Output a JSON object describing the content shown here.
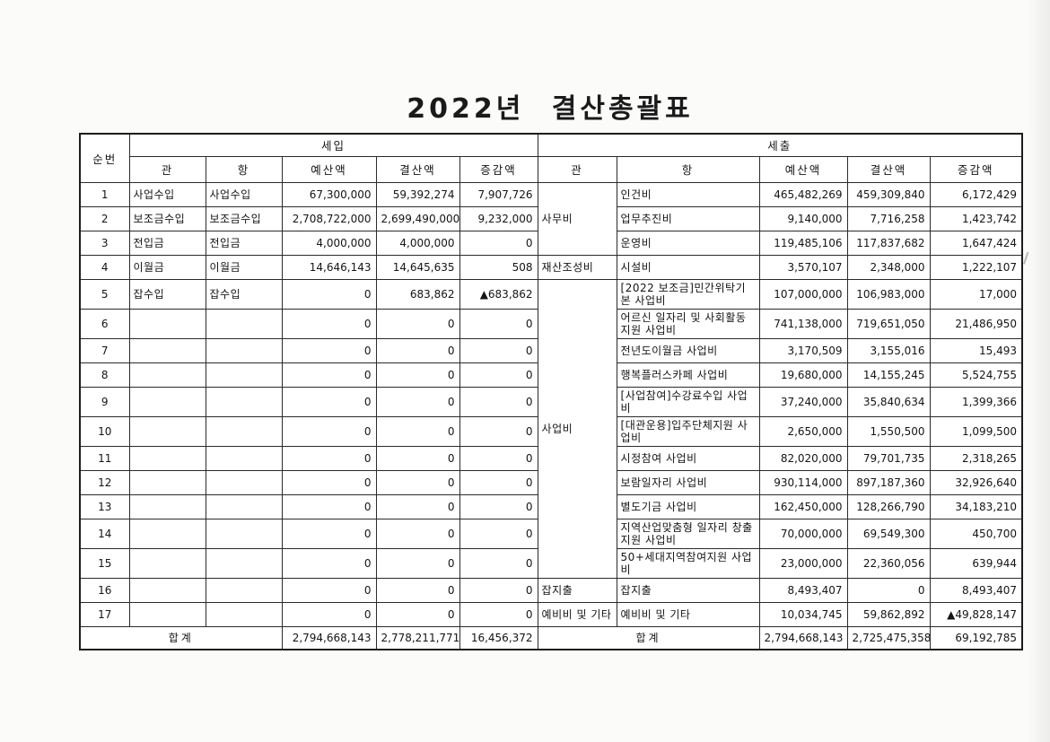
{
  "page": {
    "title": "2022년  결산총괄표"
  },
  "table": {
    "col_seq": "순번",
    "sections": {
      "revenue": "세입",
      "expenditure": "세출"
    },
    "sub_headers": [
      "관",
      "항",
      "예산액",
      "결산액",
      "증감액"
    ],
    "revenue_rows": [
      {
        "seq": "1",
        "gwan": "사업수입",
        "hang": "사업수입",
        "budget": "67,300,000",
        "settlement": "59,392,274",
        "change": "7,907,726"
      },
      {
        "seq": "2",
        "gwan": "보조금수입",
        "hang": "보조금수입",
        "budget": "2,708,722,000",
        "settlement": "2,699,490,000",
        "change": "9,232,000"
      },
      {
        "seq": "3",
        "gwan": "전입금",
        "hang": "전입금",
        "budget": "4,000,000",
        "settlement": "4,000,000",
        "change": "0"
      },
      {
        "seq": "4",
        "gwan": "이월금",
        "hang": "이월금",
        "budget": "14,646,143",
        "settlement": "14,645,635",
        "change": "508"
      },
      {
        "seq": "5",
        "gwan": "잡수입",
        "hang": "잡수입",
        "budget": "0",
        "settlement": "683,862",
        "change": "▲683,862"
      },
      {
        "seq": "6",
        "gwan": "",
        "hang": "",
        "budget": "0",
        "settlement": "0",
        "change": "0"
      },
      {
        "seq": "7",
        "gwan": "",
        "hang": "",
        "budget": "0",
        "settlement": "0",
        "change": "0"
      },
      {
        "seq": "8",
        "gwan": "",
        "hang": "",
        "budget": "0",
        "settlement": "0",
        "change": "0"
      },
      {
        "seq": "9",
        "gwan": "",
        "hang": "",
        "budget": "0",
        "settlement": "0",
        "change": "0"
      },
      {
        "seq": "10",
        "gwan": "",
        "hang": "",
        "budget": "0",
        "settlement": "0",
        "change": "0"
      },
      {
        "seq": "11",
        "gwan": "",
        "hang": "",
        "budget": "0",
        "settlement": "0",
        "change": "0"
      },
      {
        "seq": "12",
        "gwan": "",
        "hang": "",
        "budget": "0",
        "settlement": "0",
        "change": "0"
      },
      {
        "seq": "13",
        "gwan": "",
        "hang": "",
        "budget": "0",
        "settlement": "0",
        "change": "0"
      },
      {
        "seq": "14",
        "gwan": "",
        "hang": "",
        "budget": "0",
        "settlement": "0",
        "change": "0"
      },
      {
        "seq": "15",
        "gwan": "",
        "hang": "",
        "budget": "0",
        "settlement": "0",
        "change": "0"
      },
      {
        "seq": "16",
        "gwan": "",
        "hang": "",
        "budget": "0",
        "settlement": "0",
        "change": "0"
      },
      {
        "seq": "17",
        "gwan": "",
        "hang": "",
        "budget": "0",
        "settlement": "0",
        "change": "0"
      }
    ],
    "expenditure_gwan_spans": [
      {
        "label": "사무비",
        "rows": 3
      },
      {
        "label": "재산조성비",
        "rows": 1
      },
      {
        "label": "사업비",
        "rows": 11
      },
      {
        "label": "잡지출",
        "rows": 1
      },
      {
        "label": "예비비 및 기타",
        "rows": 1
      }
    ],
    "expenditure_rows": [
      {
        "hang": "인건비",
        "budget": "465,482,269",
        "settlement": "459,309,840",
        "change": "6,172,429"
      },
      {
        "hang": "업무추진비",
        "budget": "9,140,000",
        "settlement": "7,716,258",
        "change": "1,423,742"
      },
      {
        "hang": "운영비",
        "budget": "119,485,106",
        "settlement": "117,837,682",
        "change": "1,647,424"
      },
      {
        "hang": "시설비",
        "budget": "3,570,107",
        "settlement": "2,348,000",
        "change": "1,222,107"
      },
      {
        "hang": "[2022 보조금]민간위탁기본 사업비",
        "budget": "107,000,000",
        "settlement": "106,983,000",
        "change": "17,000"
      },
      {
        "hang": "어르신 일자리 및 사회활동 지원 사업비",
        "budget": "741,138,000",
        "settlement": "719,651,050",
        "change": "21,486,950"
      },
      {
        "hang": "전년도이월금 사업비",
        "budget": "3,170,509",
        "settlement": "3,155,016",
        "change": "15,493"
      },
      {
        "hang": "행복플러스카페 사업비",
        "budget": "19,680,000",
        "settlement": "14,155,245",
        "change": "5,524,755"
      },
      {
        "hang": "[사업참여]수강료수입 사업비",
        "budget": "37,240,000",
        "settlement": "35,840,634",
        "change": "1,399,366"
      },
      {
        "hang": "[대관운용]입주단체지원 사업비",
        "budget": "2,650,000",
        "settlement": "1,550,500",
        "change": "1,099,500"
      },
      {
        "hang": "시정참여 사업비",
        "budget": "82,020,000",
        "settlement": "79,701,735",
        "change": "2,318,265"
      },
      {
        "hang": "보람일자리 사업비",
        "budget": "930,114,000",
        "settlement": "897,187,360",
        "change": "32,926,640"
      },
      {
        "hang": "별도기금 사업비",
        "budget": "162,450,000",
        "settlement": "128,266,790",
        "change": "34,183,210"
      },
      {
        "hang": "지역산업맞춤형 일자리 창출 지원 사업비",
        "budget": "70,000,000",
        "settlement": "69,549,300",
        "change": "450,700"
      },
      {
        "hang": "50+세대지역참여지원 사업비",
        "budget": "23,000,000",
        "settlement": "22,360,056",
        "change": "639,944"
      },
      {
        "hang": "잡지출",
        "budget": "8,493,407",
        "settlement": "0",
        "change": "8,493,407"
      },
      {
        "hang": "예비비 및 기타",
        "budget": "10,034,745",
        "settlement": "59,862,892",
        "change": "▲49,828,147"
      }
    ],
    "totals": {
      "label": "합계",
      "revenue": {
        "budget": "2,794,668,143",
        "settlement": "2,778,211,771",
        "change": "16,456,372"
      },
      "expenditure": {
        "budget": "2,794,668,143",
        "settlement": "2,725,475,358",
        "change": "69,192,785"
      }
    }
  }
}
